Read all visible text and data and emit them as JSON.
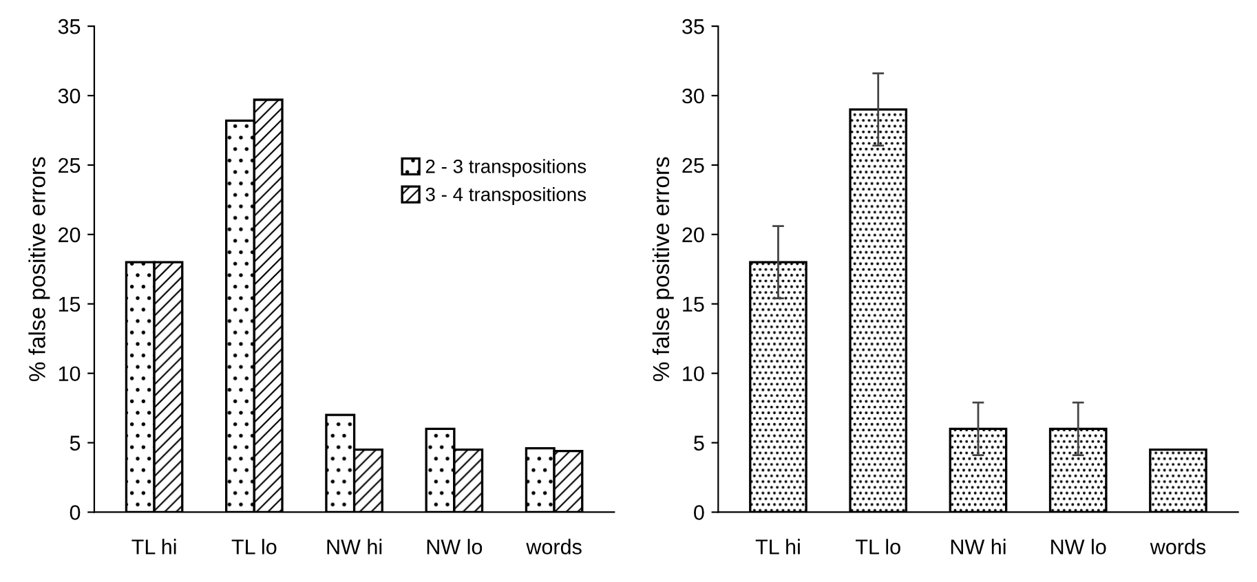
{
  "chart_data": [
    {
      "type": "bar",
      "ylabel": "% false positive errors",
      "categories": [
        "TL hi",
        "TL lo",
        "NW hi",
        "NW lo",
        "words"
      ],
      "series": [
        {
          "name": "2 - 3 transpositions",
          "color": "#000000",
          "values": [
            18,
            28.2,
            7,
            6,
            4.6
          ]
        },
        {
          "name": "3 - 4 transpositions",
          "color": "#000000",
          "values": [
            18,
            29.7,
            4.5,
            4.5,
            4.4
          ]
        }
      ],
      "ylim": [
        0,
        35
      ],
      "yticks": [
        0,
        5,
        10,
        15,
        20,
        25,
        30,
        35
      ],
      "legend": "right",
      "grid": false
    },
    {
      "type": "bar",
      "ylabel": "% false positive errors",
      "categories": [
        "TL hi",
        "TL lo",
        "NW hi",
        "NW lo",
        "words"
      ],
      "values": [
        18,
        29,
        6,
        6,
        4.5
      ],
      "errors": [
        2.6,
        2.6,
        1.9,
        1.9,
        null
      ],
      "color": "#000000",
      "ylim": [
        0,
        35
      ],
      "yticks": [
        0,
        5,
        10,
        15,
        20,
        25,
        30,
        35
      ],
      "grid": false
    }
  ]
}
